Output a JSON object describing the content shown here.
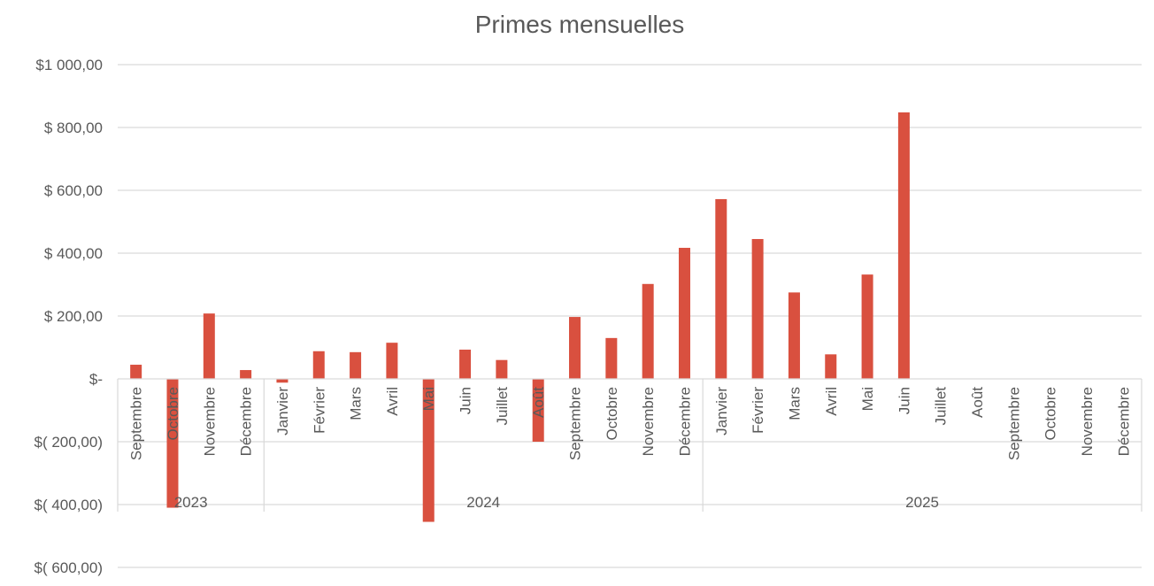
{
  "chart_data": {
    "type": "bar",
    "title": "Primes mensuelles",
    "xlabel": "",
    "ylabel": "",
    "ylim": [
      -600,
      1000
    ],
    "ytick_values": [
      1000,
      800,
      600,
      400,
      200,
      0,
      -200,
      -400,
      -600
    ],
    "ytick_labels": [
      "$1 000,00",
      "$ 800,00",
      "$ 600,00",
      "$ 400,00",
      "$ 200,00",
      "$-",
      "$( 200,00)",
      "$( 400,00)",
      "$( 600,00)"
    ],
    "grid": true,
    "legend": "none",
    "bar_color": "#D9503F",
    "categories": [
      "Septembre",
      "Octobre",
      "Novembre",
      "Décembre",
      "Janvier",
      "Février",
      "Mars",
      "Avril",
      "Mai",
      "Juin",
      "Juillet",
      "Août",
      "Septembre",
      "Octobre",
      "Novembre",
      "Décembre",
      "Janvier",
      "Février",
      "Mars",
      "Avril",
      "Mai",
      "Juin",
      "Juillet",
      "Août",
      "Septembre",
      "Octobre",
      "Novembre",
      "Décembre"
    ],
    "groups": [
      {
        "label": "2023",
        "count": 4
      },
      {
        "label": "2024",
        "count": 12
      },
      {
        "label": "2025",
        "count": 12
      }
    ],
    "values": [
      45,
      -410,
      208,
      28,
      -12,
      88,
      85,
      115,
      -455,
      93,
      60,
      -200,
      197,
      130,
      302,
      417,
      572,
      445,
      275,
      78,
      332,
      848,
      null,
      null,
      null,
      null,
      null,
      null
    ]
  }
}
